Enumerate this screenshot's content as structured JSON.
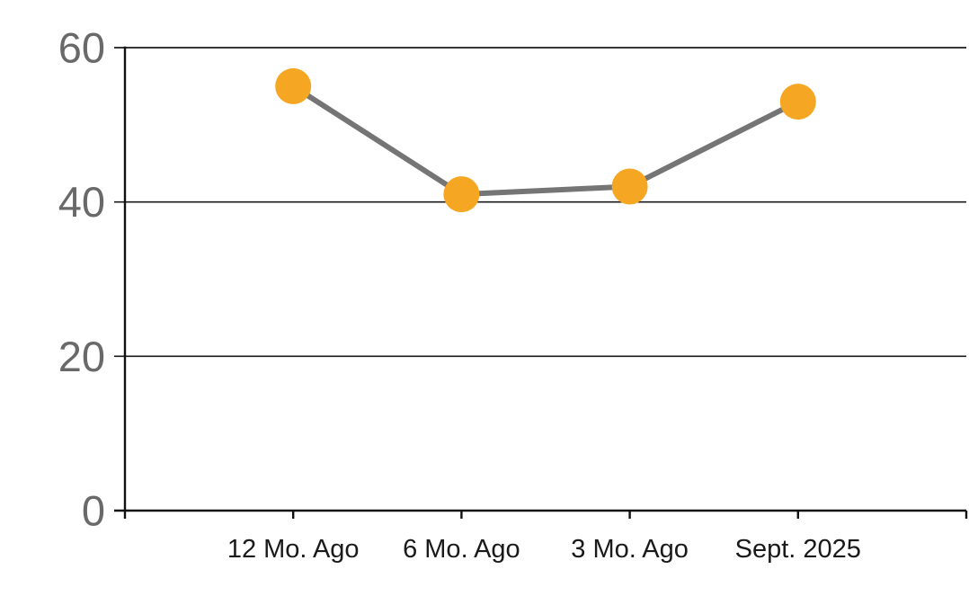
{
  "chart_data": {
    "type": "line",
    "categories": [
      "12 Mo. Ago",
      "6 Mo. Ago",
      "3 Mo. Ago",
      "Sept. 2025"
    ],
    "values": [
      55,
      41,
      42,
      53
    ],
    "title": "",
    "xlabel": "",
    "ylabel": "",
    "ylim": [
      0,
      60
    ],
    "yticks": [
      0,
      20,
      40,
      60
    ],
    "grid": true,
    "legend": false,
    "colors": {
      "marker": "#F5A623",
      "line": "#757575",
      "axis": "#111111",
      "gridline": "#1a1a1a",
      "ytick_label": "#696969",
      "xtick_label": "#1a1a1a",
      "background": "#ffffff"
    }
  }
}
